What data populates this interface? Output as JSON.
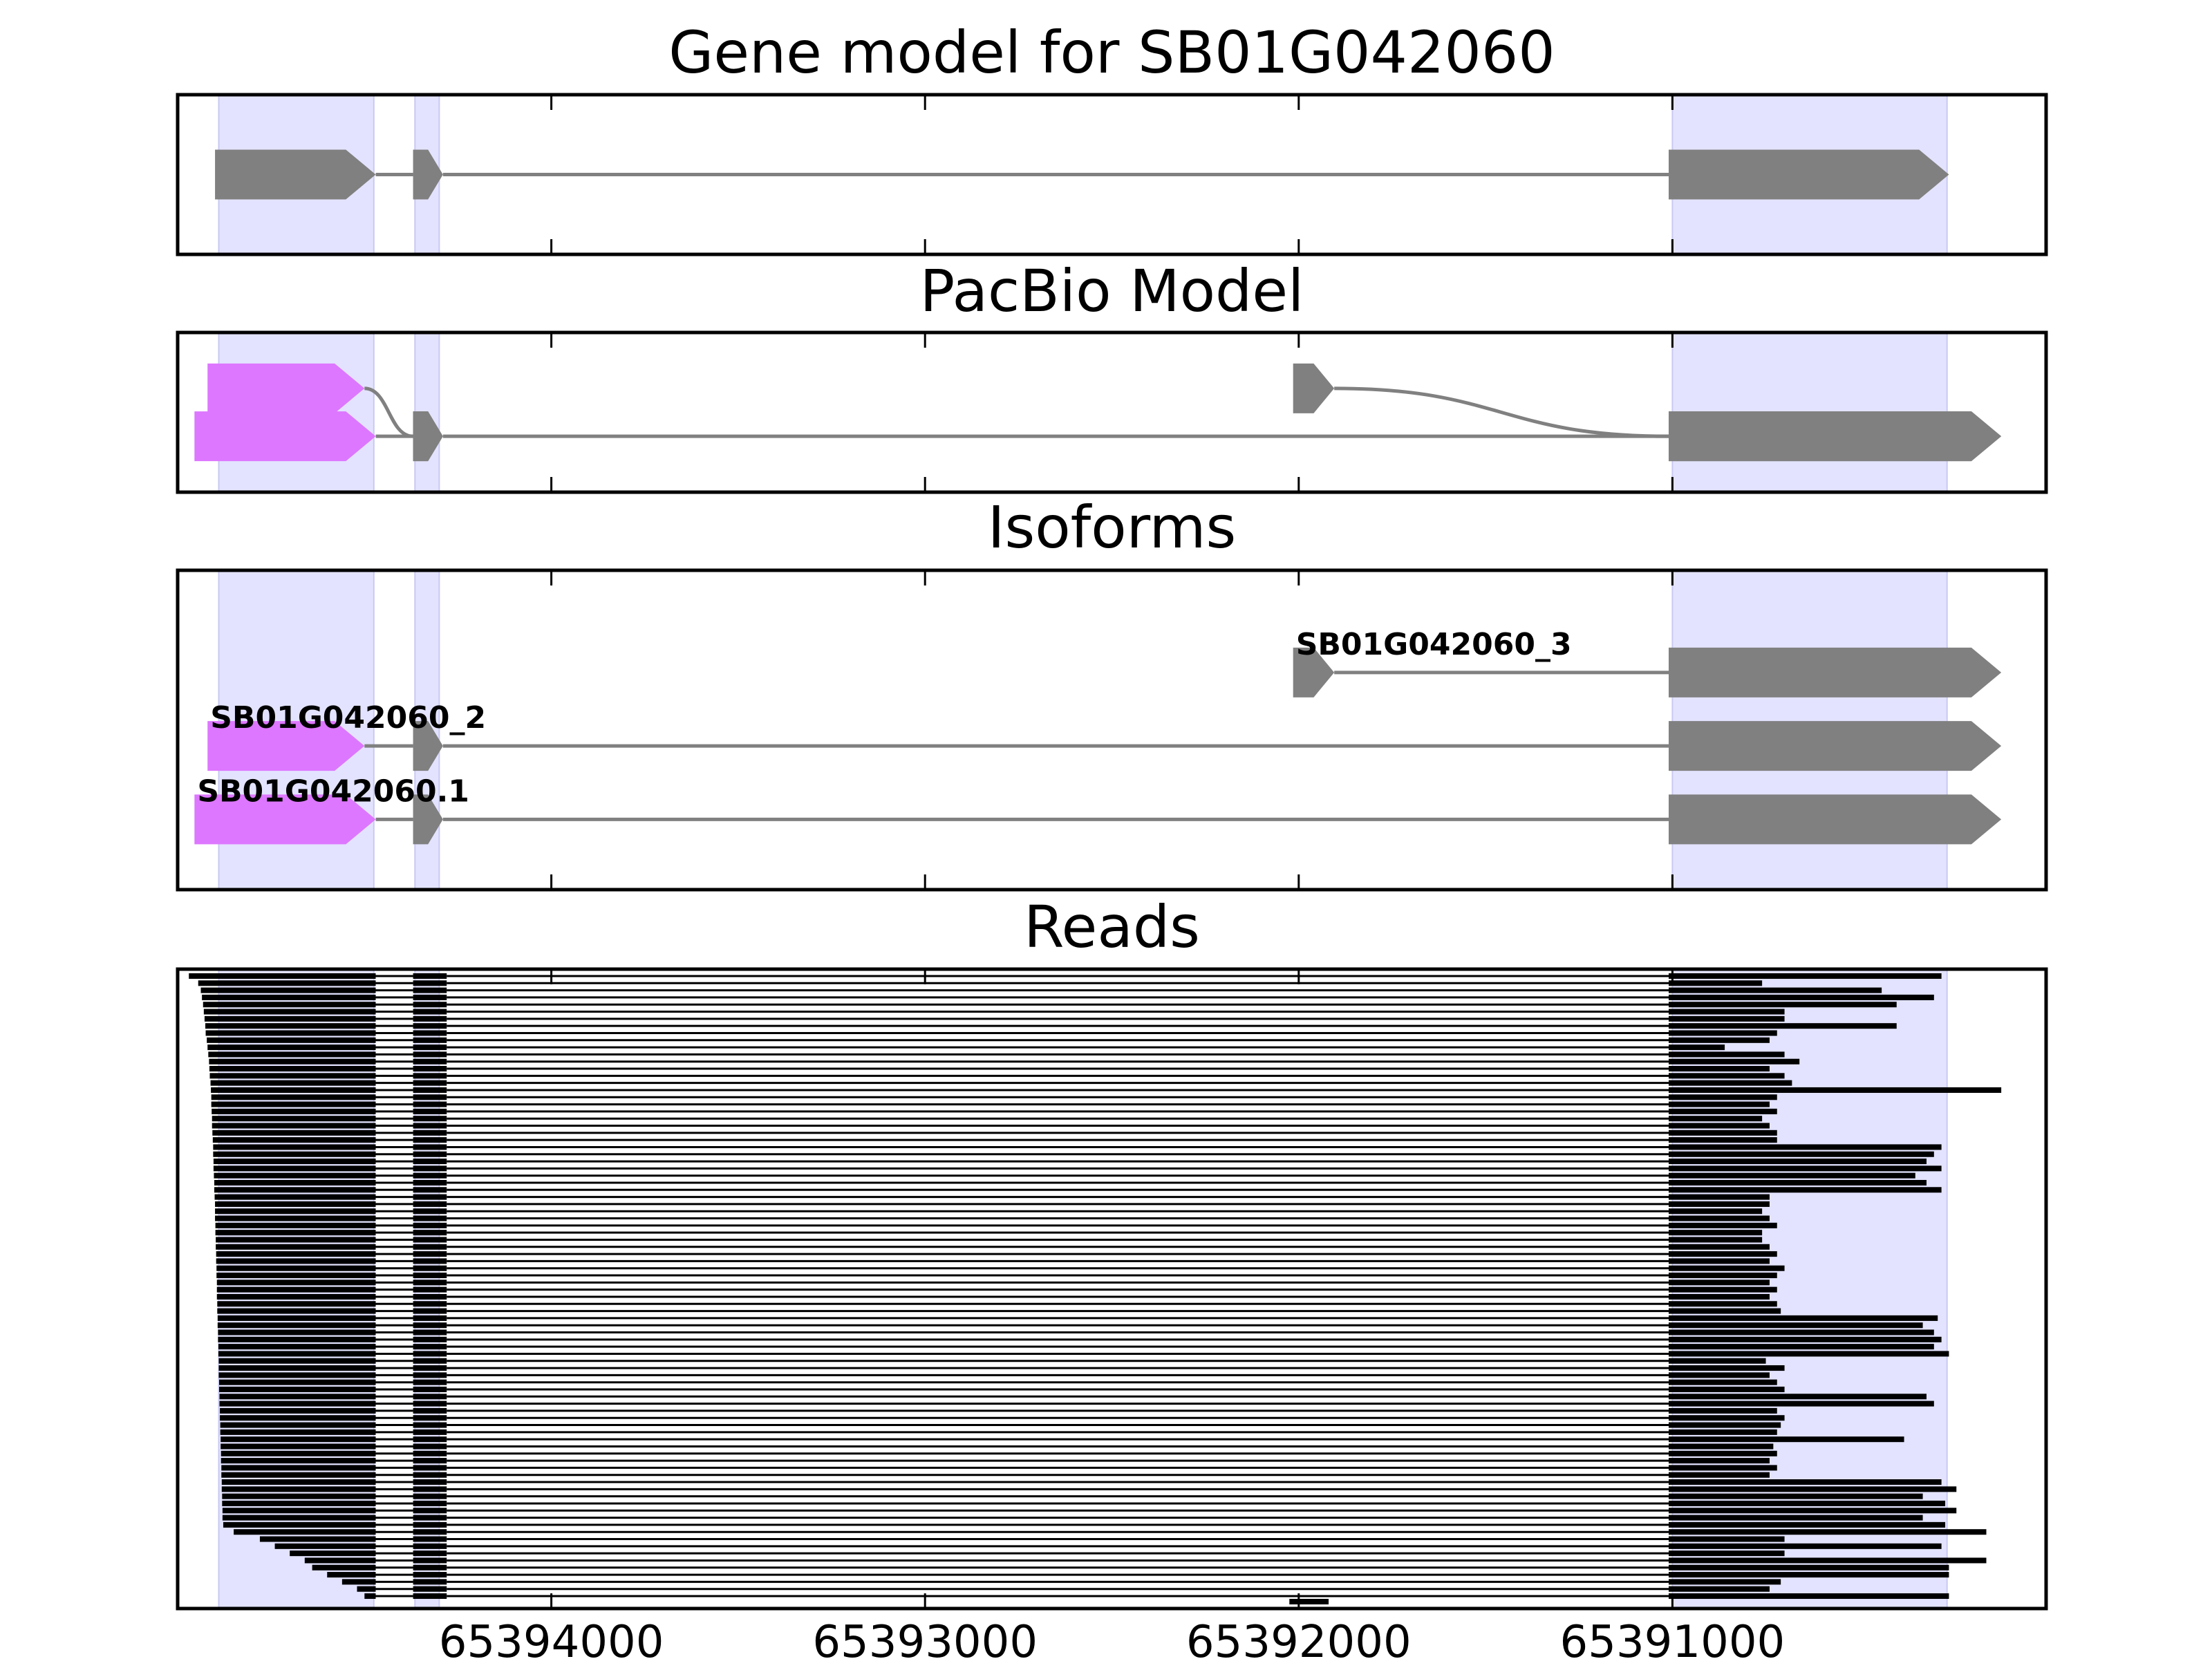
{
  "chart_data": {
    "type": "gene-structure",
    "xaxis": {
      "reversed": true,
      "range": [
        65395000,
        65390000
      ],
      "ticks": [
        65394000,
        65393000,
        65392000,
        65391000
      ],
      "tick_labels": [
        "65394000",
        "65393000",
        "65392000",
        "65391000"
      ]
    },
    "colors": {
      "exon_highlight": "#e3e3ff",
      "feature": "#808080",
      "utr": "#dd77ff",
      "read": "#000000",
      "intron": "#808080"
    },
    "exon_highlights": [
      [
        65394890,
        65394475
      ],
      [
        65394365,
        65394300
      ],
      [
        65391000,
        65390265
      ]
    ],
    "panels": [
      {
        "title": "Gene model for SB01G042060",
        "tracks": [
          {
            "rows": [
              {
                "y": 0.5,
                "exons": [
                  {
                    "start": 65394900,
                    "end": 65394470,
                    "kind": "cds",
                    "arrow": true
                  },
                  {
                    "start": 65394370,
                    "end": 65394290,
                    "kind": "cds",
                    "arrow": true
                  },
                  {
                    "start": 65391010,
                    "end": 65390260,
                    "kind": "cds",
                    "arrow": true
                  }
                ]
              }
            ]
          }
        ]
      },
      {
        "title": "PacBio Model",
        "rows": [
          {
            "y": 0.35,
            "exons": [
              {
                "start": 65394920,
                "end": 65394500,
                "kind": "utr",
                "arrow": true
              },
              {
                "start": 65394370,
                "end": 65394290,
                "kind": "cds",
                "arrow": true,
                "shared": true
              }
            ],
            "curve_to": 0.65
          },
          {
            "y": 0.65,
            "exons": [
              {
                "start": 65394955,
                "end": 65394470,
                "kind": "utr",
                "arrow": true
              },
              {
                "start": 65394370,
                "end": 65394290,
                "kind": "cds",
                "arrow": true
              },
              {
                "start": 65391010,
                "end": 65390120,
                "kind": "cds",
                "arrow": true
              }
            ]
          },
          {
            "y": 0.35,
            "exons": [
              {
                "start": 65392015,
                "end": 65391905,
                "kind": "cds",
                "arrow": true
              },
              {
                "start": 65391010,
                "end": 65390120,
                "kind": "cds",
                "arrow": true,
                "shared": true
              }
            ],
            "curve_to": 0.65
          }
        ]
      },
      {
        "title": "Isoforms",
        "isoforms": [
          {
            "name": "SB01G042060_3",
            "y": 0.32,
            "exons": [
              {
                "start": 65392015,
                "end": 65391905,
                "kind": "cds",
                "arrow": true
              },
              {
                "start": 65391010,
                "end": 65390120,
                "kind": "cds",
                "arrow": true
              }
            ]
          },
          {
            "name": "SB01G042060_2",
            "y": 0.55,
            "exons": [
              {
                "start": 65394920,
                "end": 65394500,
                "kind": "utr",
                "arrow": true
              },
              {
                "start": 65394370,
                "end": 65394290,
                "kind": "cds",
                "arrow": true
              },
              {
                "start": 65391010,
                "end": 65390120,
                "kind": "cds",
                "arrow": true
              }
            ]
          },
          {
            "name": "SB01G042060.1",
            "y": 0.78,
            "exons": [
              {
                "start": 65394955,
                "end": 65394470,
                "kind": "utr",
                "arrow": true
              },
              {
                "start": 65394370,
                "end": 65394290,
                "kind": "cds",
                "arrow": true
              },
              {
                "start": 65391010,
                "end": 65390120,
                "kind": "cds",
                "arrow": true
              }
            ]
          }
        ]
      },
      {
        "title": "Reads",
        "reads": {
          "count": 88,
          "exon2": [
            65394370,
            65394280
          ],
          "exon1_end": 65394470,
          "exon1_starts": [
            65394970,
            65394945,
            65394938,
            65394935,
            65394932,
            65394930,
            65394928,
            65394926,
            65394925,
            65394922,
            65394920,
            65394918,
            65394916,
            65394915,
            65394914,
            65394912,
            65394911,
            65394910,
            65394910,
            65394909,
            65394908,
            65394908,
            65394907,
            65394906,
            65394905,
            65394905,
            65394904,
            65394904,
            65394903,
            65394902,
            65394902,
            65394901,
            65394900,
            65394900,
            65394900,
            65394899,
            65394899,
            65394898,
            65394898,
            65394897,
            65394897,
            65394896,
            65394896,
            65394895,
            65394895,
            65394895,
            65394894,
            65394894,
            65394893,
            65394893,
            65394892,
            65394892,
            65394891,
            65394891,
            65394890,
            65394890,
            65394890,
            65394889,
            65394889,
            65394888,
            65394888,
            65394887,
            65394887,
            65394886,
            65394886,
            65394885,
            65394885,
            65394884,
            65394884,
            65394883,
            65394883,
            65394882,
            65394882,
            65394881,
            65394881,
            65394880,
            65394880,
            65394878,
            65394850,
            65394780,
            65394740,
            65394700,
            65394660,
            65394640,
            65394600,
            65394560,
            65394520,
            65394500
          ],
          "exon3_ends": [
            65390280,
            65390760,
            65390440,
            65390300,
            65390400,
            65390700,
            65390700,
            65390400,
            65390720,
            65390740,
            65390860,
            65390700,
            65390660,
            65390740,
            65390700,
            65390680,
            65390120,
            65390720,
            65390740,
            65390720,
            65390760,
            65390740,
            65390720,
            65390720,
            65390280,
            65390300,
            65390320,
            65390280,
            65390350,
            65390320,
            65390280,
            65390740,
            65390740,
            65390760,
            65390740,
            65390720,
            65390760,
            65390760,
            65390740,
            65390720,
            65390740,
            65390700,
            65390720,
            65390740,
            65390720,
            65390740,
            65390720,
            65390710,
            65390290,
            65390330,
            65390300,
            65390280,
            65390300,
            65390260,
            65390750,
            65390700,
            65390740,
            65390720,
            65390700,
            65390320,
            65390300,
            65390720,
            65390700,
            65390710,
            65390720,
            65390380,
            65390730,
            65390720,
            65390740,
            65390720,
            65390740,
            65390280,
            65390240,
            65390330,
            65390270,
            65390240,
            65390330,
            65390270,
            65390160,
            65390700,
            65390280,
            65390700,
            65390160,
            65390260,
            65390260,
            65390710,
            65390740,
            65390260
          ],
          "extra_read": {
            "start": 65392025,
            "end": 65391920
          }
        }
      }
    ]
  }
}
